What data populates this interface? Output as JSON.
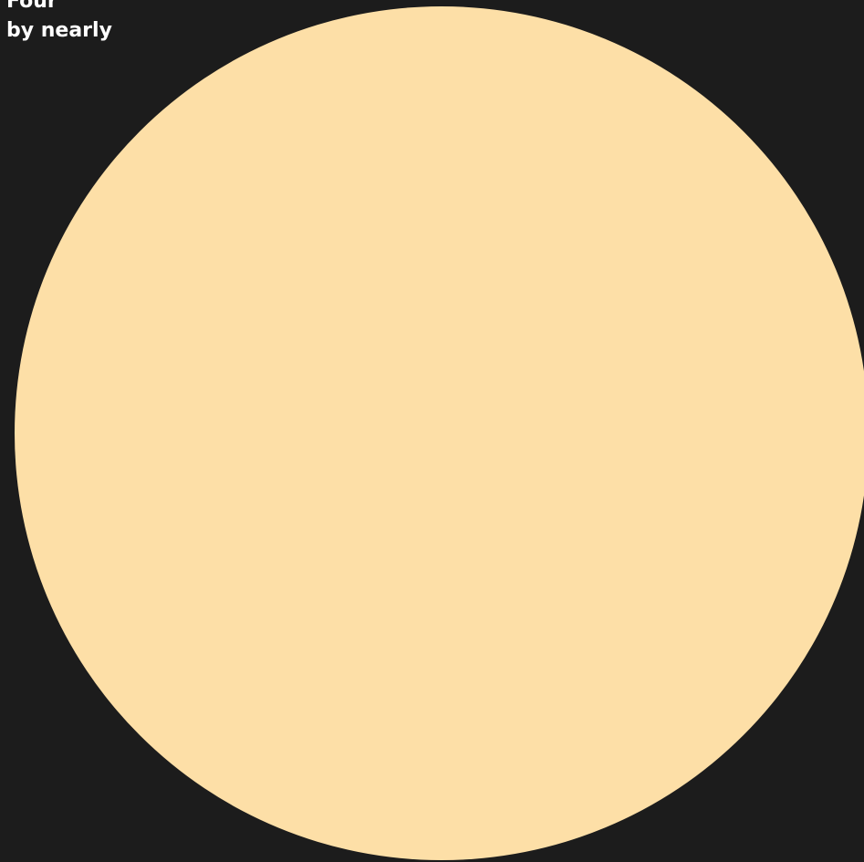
{
  "caption": {
    "line1": "Four",
    "line2": "by nearly"
  },
  "colors": {
    "background": "#1c1c1c",
    "disc": "#fddfa7",
    "text": "#ffffff"
  }
}
